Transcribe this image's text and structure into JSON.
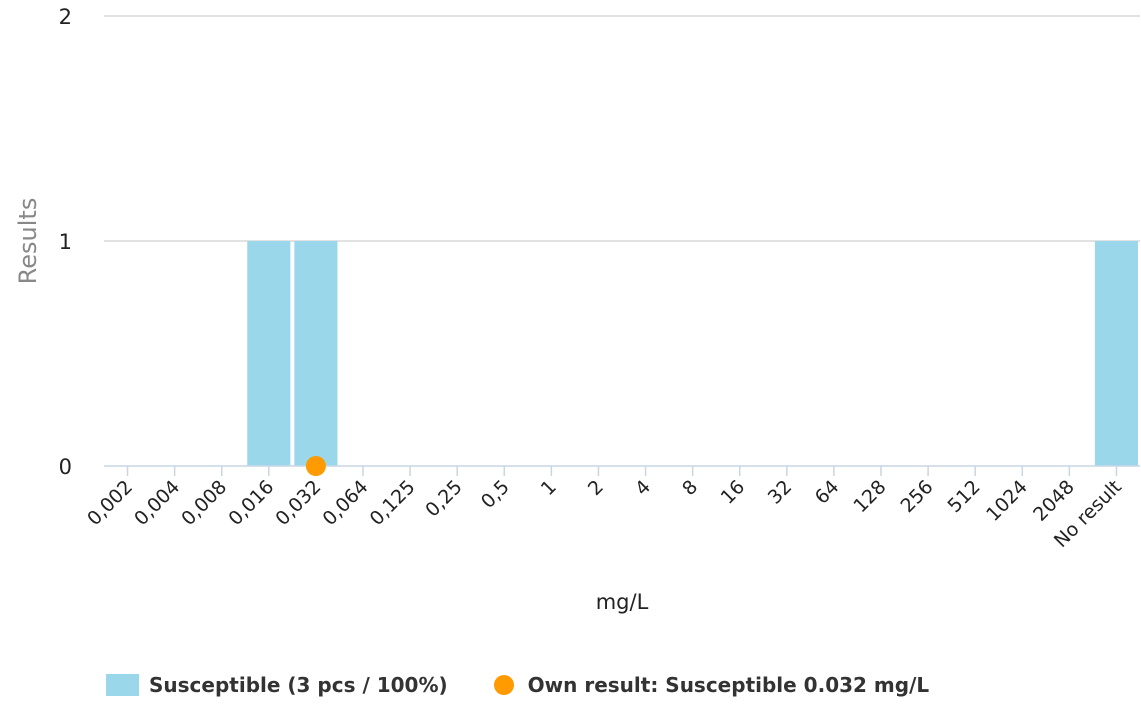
{
  "chart_data": {
    "type": "bar",
    "categories": [
      "0,002",
      "0,004",
      "0,008",
      "0,016",
      "0,032",
      "0,064",
      "0,125",
      "0,25",
      "0,5",
      "1",
      "2",
      "4",
      "8",
      "16",
      "32",
      "64",
      "128",
      "256",
      "512",
      "1024",
      "2048",
      "No result"
    ],
    "series": [
      {
        "name": "Susceptible (3 pcs / 100%)",
        "values": [
          0,
          0,
          0,
          1,
          1,
          0,
          0,
          0,
          0,
          0,
          0,
          0,
          0,
          0,
          0,
          0,
          0,
          0,
          0,
          0,
          0,
          1
        ]
      }
    ],
    "own_result": {
      "label": "Own result: Susceptible 0.032 mg/L",
      "category": "0,032",
      "value": 0
    },
    "xlabel": "mg/L",
    "ylabel": "Results",
    "ylim": [
      0,
      2
    ],
    "yticks": [
      "0",
      "1",
      "2"
    ],
    "grid": true,
    "legend_position": "bottom",
    "colors": {
      "bar": "#9ad7ea",
      "own_result": "#ff9a00",
      "grid": "#d8d8d8",
      "axis": "#c9d6e4"
    }
  }
}
